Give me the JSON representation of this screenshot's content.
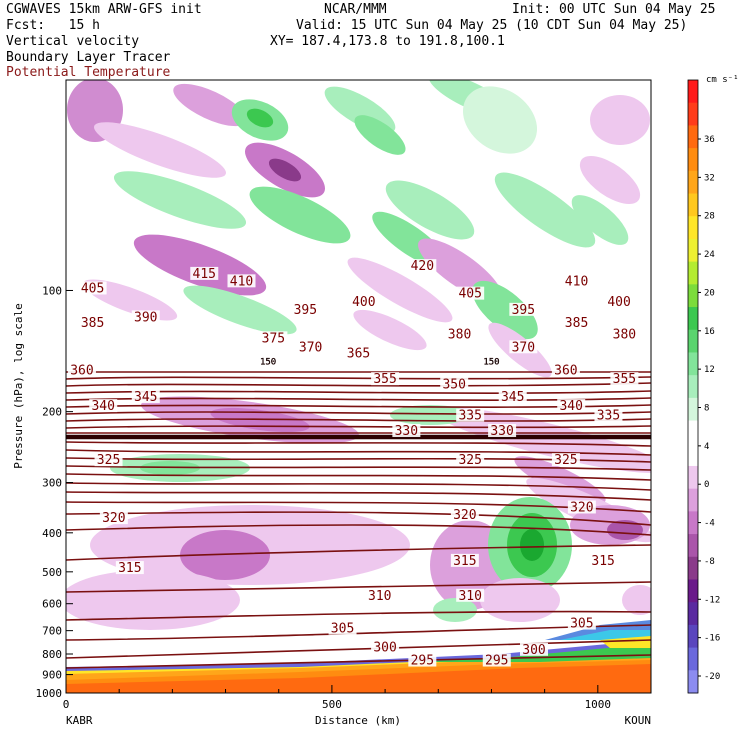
{
  "header": {
    "model": "CGWAVES 15km ARW-GFS init",
    "center": "NCAR/MMM",
    "init": "Init: 00 UTC Sun 04 May 25",
    "fcst": "Fcst:   15 h",
    "valid": "Valid: 15 UTC Sun 04 May 25 (10 CDT Sun 04 May 25)",
    "xy": "XY= 187.4,173.8 to 191.8,100.1",
    "field1": "Vertical velocity",
    "field2": "Boundary Layer Tracer",
    "field3": "Potential Temperature",
    "field3_color": "#8b1a1a"
  },
  "chart_data": {
    "type": "heatmap",
    "xlabel": "Distance (km)",
    "ylabel": "Pressure (hPa), log scale",
    "x_ticks": [
      0,
      500,
      1000
    ],
    "xlim": [
      0,
      1100
    ],
    "x_left_label": "KABR",
    "x_right_label": "KOUN",
    "y_ticks": [
      100,
      200,
      300,
      400,
      500,
      600,
      700,
      800,
      900,
      1000
    ],
    "ylim": [
      1000,
      30
    ],
    "y_scale": "log",
    "colorbar": {
      "unit": "cm s⁻¹",
      "labels": [
        "36",
        "32",
        "28",
        "24",
        "20",
        "16",
        "12",
        "8",
        "4",
        "0",
        "-4",
        "-8",
        "-12",
        "-16",
        "-20"
      ],
      "colors": [
        "#ff1a1a",
        "#ff3c1a",
        "#ff6a10",
        "#ff8c10",
        "#ffa61a",
        "#ffc81e",
        "#ffe628",
        "#eef032",
        "#b4ec32",
        "#7cdc3c",
        "#3cc850",
        "#5ad46e",
        "#82e49a",
        "#a8eebc",
        "#d4f6dc",
        "#ffffff",
        "#ffffff",
        "#eec8ee",
        "#dca0dc",
        "#c878c8",
        "#aa55aa",
        "#8a3a8a",
        "#6a1a8a",
        "#5a2aa0",
        "#5a46be",
        "#6a68dc",
        "#8c8cf0"
      ]
    },
    "theta_contours": [
      {
        "label": "420",
        "x": 670,
        "p": 88
      },
      {
        "label": "415",
        "x": 260,
        "p": 92
      },
      {
        "label": "410",
        "x": 330,
        "p": 96
      },
      {
        "label": "410",
        "x": 960,
        "p": 96
      },
      {
        "label": "405",
        "x": 50,
        "p": 100
      },
      {
        "label": "405",
        "x": 760,
        "p": 103
      },
      {
        "label": "400",
        "x": 560,
        "p": 108
      },
      {
        "label": "400",
        "x": 1040,
        "p": 108
      },
      {
        "label": "395",
        "x": 450,
        "p": 113
      },
      {
        "label": "395",
        "x": 860,
        "p": 113
      },
      {
        "label": "390",
        "x": 150,
        "p": 118
      },
      {
        "label": "385",
        "x": 50,
        "p": 122
      },
      {
        "label": "385",
        "x": 960,
        "p": 122
      },
      {
        "label": "380",
        "x": 740,
        "p": 130
      },
      {
        "label": "380",
        "x": 1050,
        "p": 130
      },
      {
        "label": "375",
        "x": 390,
        "p": 133
      },
      {
        "label": "370",
        "x": 460,
        "p": 140
      },
      {
        "label": "370",
        "x": 860,
        "p": 140
      },
      {
        "label": "365",
        "x": 550,
        "p": 145
      },
      {
        "label": "360",
        "x": 30,
        "p": 160
      },
      {
        "label": "360",
        "x": 940,
        "p": 160
      },
      {
        "label": "355",
        "x": 600,
        "p": 168
      },
      {
        "label": "355",
        "x": 1050,
        "p": 168
      },
      {
        "label": "350",
        "x": 730,
        "p": 173
      },
      {
        "label": "345",
        "x": 150,
        "p": 186
      },
      {
        "label": "345",
        "x": 840,
        "p": 186
      },
      {
        "label": "340",
        "x": 70,
        "p": 196
      },
      {
        "label": "340",
        "x": 950,
        "p": 196
      },
      {
        "label": "335",
        "x": 760,
        "p": 207
      },
      {
        "label": "335",
        "x": 1020,
        "p": 207
      },
      {
        "label": "330",
        "x": 640,
        "p": 226
      },
      {
        "label": "330",
        "x": 820,
        "p": 226
      },
      {
        "label": "325",
        "x": 80,
        "p": 267
      },
      {
        "label": "325",
        "x": 760,
        "p": 267
      },
      {
        "label": "325",
        "x": 940,
        "p": 267
      },
      {
        "label": "320",
        "x": 90,
        "p": 372
      },
      {
        "label": "320",
        "x": 750,
        "p": 365
      },
      {
        "label": "320",
        "x": 970,
        "p": 350
      },
      {
        "label": "315",
        "x": 120,
        "p": 495
      },
      {
        "label": "315",
        "x": 750,
        "p": 475
      },
      {
        "label": "315",
        "x": 1010,
        "p": 475
      },
      {
        "label": "310",
        "x": 590,
        "p": 580
      },
      {
        "label": "310",
        "x": 760,
        "p": 580
      },
      {
        "label": "305",
        "x": 520,
        "p": 700
      },
      {
        "label": "305",
        "x": 970,
        "p": 680
      },
      {
        "label": "300",
        "x": 600,
        "p": 780
      },
      {
        "label": "300",
        "x": 880,
        "p": 790
      },
      {
        "label": "295",
        "x": 670,
        "p": 840
      },
      {
        "label": "295",
        "x": 810,
        "p": 840
      }
    ],
    "tropopause_markers": [
      {
        "label": "150",
        "x": 380,
        "p": 150
      },
      {
        "label": "150",
        "x": 800,
        "p": 150
      }
    ]
  }
}
